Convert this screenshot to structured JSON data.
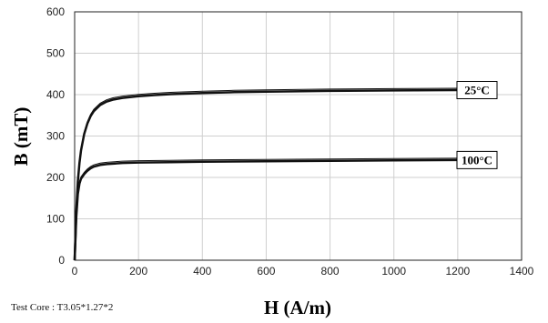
{
  "chart_data": {
    "type": "line",
    "title": "",
    "xlabel": "H (A/m)",
    "ylabel": "B (mT)",
    "xlim": [
      0,
      1400
    ],
    "ylim": [
      0,
      600
    ],
    "xticks": [
      "0",
      "200",
      "400",
      "600",
      "800",
      "1000",
      "1200",
      "1400"
    ],
    "yticks": [
      "0",
      "100",
      "200",
      "300",
      "400",
      "500",
      "600"
    ],
    "grid": true,
    "legend": "none",
    "series": [
      {
        "name": "25°C",
        "color": "#111111",
        "x": [
          0,
          5,
          10,
          15,
          20,
          30,
          40,
          50,
          60,
          80,
          100,
          120,
          150,
          200,
          250,
          300,
          400,
          500,
          600,
          800,
          1000,
          1200
        ],
        "y": [
          0,
          120,
          190,
          235,
          265,
          305,
          330,
          348,
          360,
          375,
          383,
          388,
          392,
          396,
          399,
          401,
          404,
          406,
          407,
          409,
          410,
          411
        ]
      },
      {
        "name": "100°C",
        "color": "#111111",
        "x": [
          0,
          5,
          10,
          15,
          20,
          30,
          40,
          50,
          60,
          80,
          100,
          150,
          200,
          300,
          400,
          600,
          800,
          1000,
          1200
        ],
        "y": [
          0,
          105,
          160,
          185,
          197,
          208,
          216,
          222,
          226,
          230,
          232,
          235,
          236,
          237,
          238,
          239,
          240,
          241,
          242
        ]
      }
    ]
  },
  "footnote": "Test Core : T3.05*1.27*2"
}
